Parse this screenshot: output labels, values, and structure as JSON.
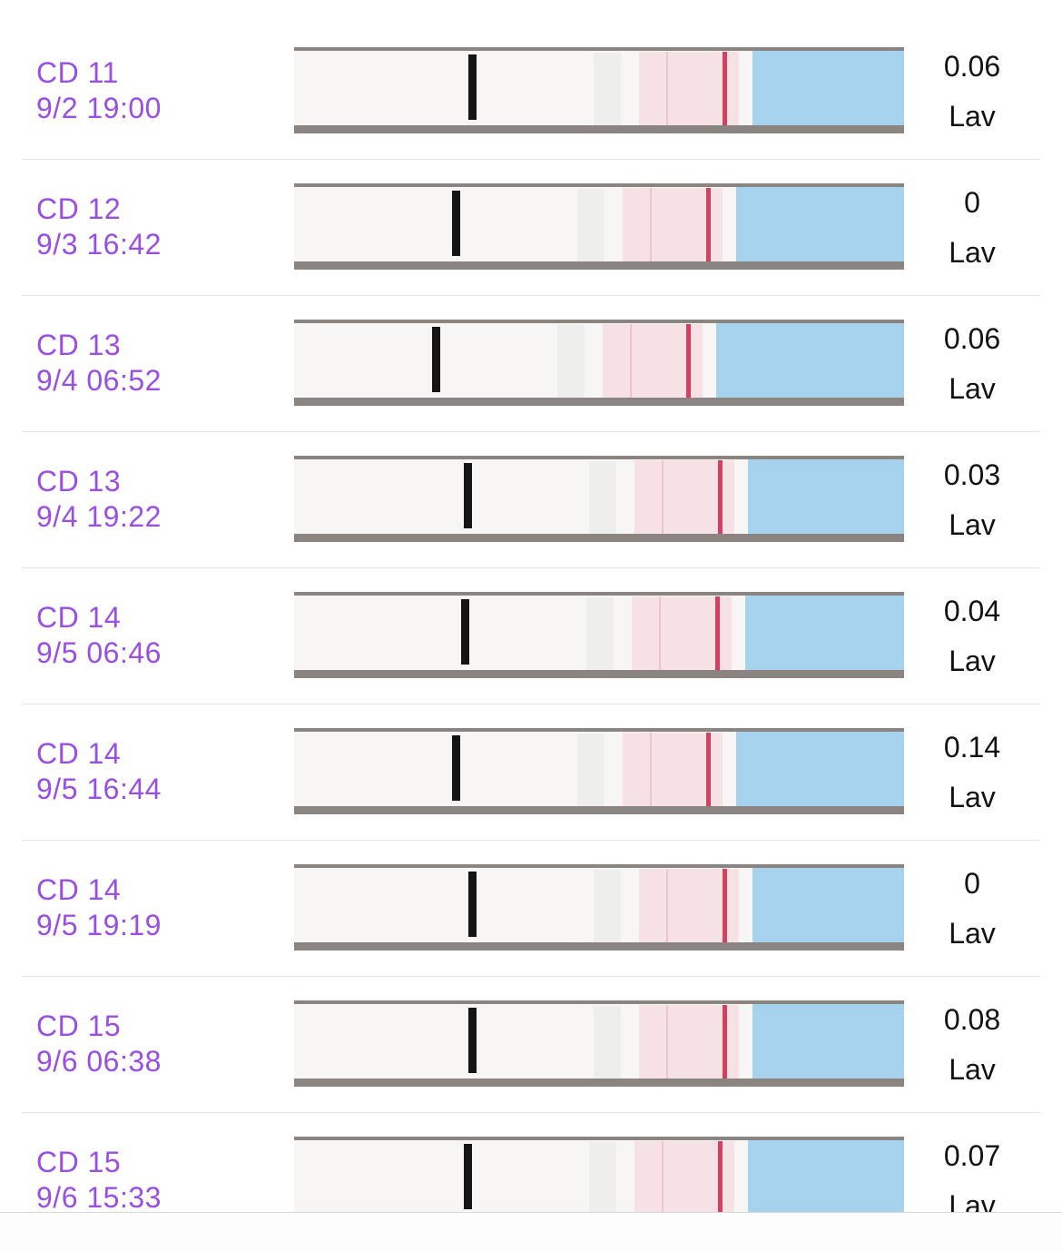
{
  "rows": [
    {
      "day": "CD 11",
      "time": "9/2 19:00",
      "value": 0.06,
      "status": "Lav"
    },
    {
      "day": "CD 12",
      "time": "9/3 16:42",
      "value": 0,
      "status": "Lav"
    },
    {
      "day": "CD 13",
      "time": "9/4 06:52",
      "value": 0.06,
      "status": "Lav"
    },
    {
      "day": "CD 13",
      "time": "9/4 19:22",
      "value": 0.03,
      "status": "Lav"
    },
    {
      "day": "CD 14",
      "time": "9/5 06:46",
      "value": 0.04,
      "status": "Lav"
    },
    {
      "day": "CD 14",
      "time": "9/5 16:44",
      "value": 0.14,
      "status": "Lav"
    },
    {
      "day": "CD 14",
      "time": "9/5 19:19",
      "value": 0,
      "status": "Lav"
    },
    {
      "day": "CD 15",
      "time": "9/6 06:38",
      "value": 0.08,
      "status": "Lav"
    },
    {
      "day": "CD 15",
      "time": "9/6 15:33",
      "value": 0.07,
      "status": "Lav"
    }
  ]
}
